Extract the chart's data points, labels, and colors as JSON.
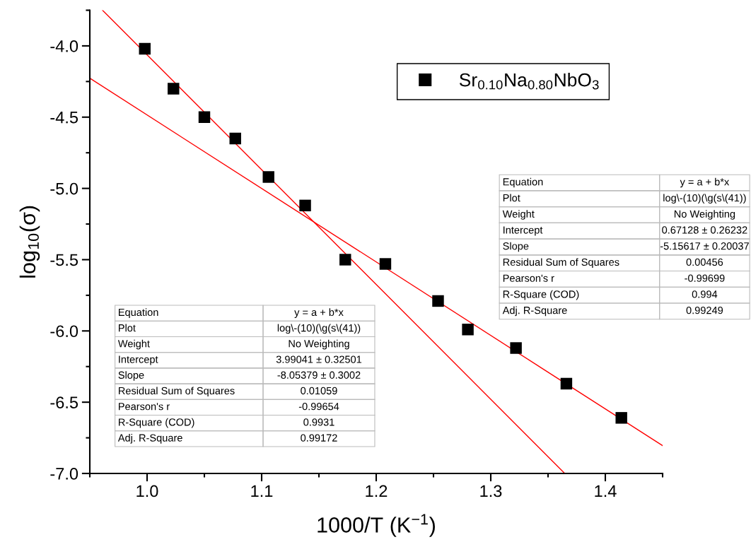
{
  "chart_data": {
    "type": "scatter",
    "xlabel": "1000/T (K$^{−1}$)",
    "ylabel": "log$_{10}$(σ)",
    "xlim": [
      0.95,
      1.45
    ],
    "xticks": [
      {
        "value": 1.0,
        "label": "1.0"
      },
      1.1,
      1.2,
      1.3,
      1.4
    ],
    "ylim": [
      -7.0,
      -3.75
    ],
    "yticks": [
      {
        "value": -7.0,
        "label": "-7.0"
      },
      -6.5,
      {
        "value": -6.0,
        "label": "-6.0"
      },
      -5.5,
      {
        "value": -5.0,
        "label": "-5.0"
      },
      -4.5,
      {
        "value": -4.0,
        "label": "-4.0"
      }
    ],
    "grid": false,
    "legend": "top right",
    "series": [
      {
        "name": "Sr$_{0.10}$Na$_{0.80}$NbO$_{3}$",
        "marker": "square",
        "color": "#000000",
        "x": [
          0.998,
          1.023,
          1.05,
          1.077,
          1.106,
          1.138,
          1.173,
          1.208,
          1.254,
          1.28,
          1.322,
          1.366,
          1.414
        ],
        "values": [
          -4.02,
          -4.3,
          -4.5,
          -4.65,
          -4.92,
          -5.12,
          -5.5,
          -5.53,
          -5.79,
          -5.99,
          -6.12,
          -6.37,
          -6.61
        ]
      },
      {
        "type": "line",
        "color": "#ff0000",
        "line_style": "solid",
        "x": [
          0.9611,
          1.3646
        ],
        "values": [
          -3.75,
          -7.0
        ]
      },
      {
        "type": "line",
        "color": "#ff0000",
        "line_style": "solid",
        "x": [
          0.95,
          1.45
        ],
        "values": [
          -4.227,
          -6.805
        ]
      }
    ],
    "annotations": [
      "Equation",
      "y = a + b*x",
      "Plot",
      "log\\-(10)(\\g(s\\(41))",
      "Weight",
      "No Weighting",
      "Intercept",
      "3.99041 ± 0.32501",
      "Slope",
      "-8.05379 ± 0.3002",
      "Residual Sum of Squares",
      "0.01059",
      "Pearson's r",
      "-0.99654",
      "R-Square (COD)",
      "0.9931",
      "Adj. R-Square",
      "0.99172",
      "Equation",
      "y = a + b*x",
      "Plot",
      "log\\-(10)(\\g(s\\(41))",
      "Weight",
      "No Weighting",
      "Intercept",
      "0.67128 ± 0.26232",
      "Slope",
      "-5.15617 ± 0.20037",
      "Residual Sum of Squares",
      "0.00456",
      "Pearson's r",
      "-0.99699",
      "R-Square (COD)",
      "0.994",
      "Adj. R-Square",
      "0.99249"
    ]
  }
}
